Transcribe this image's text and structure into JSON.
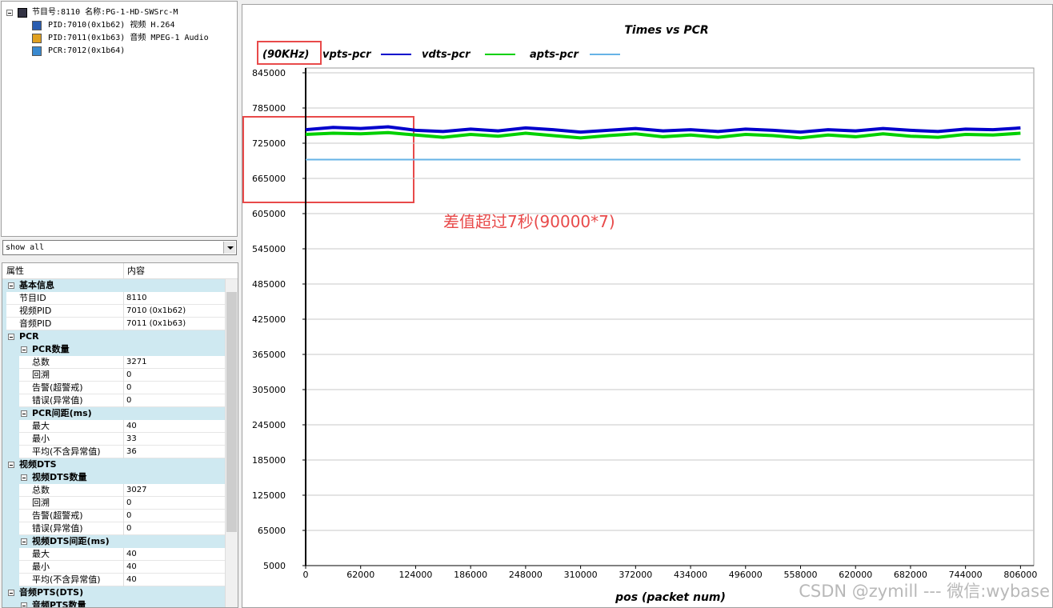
{
  "tree": {
    "root": "节目号:8110 名称:PG-1-HD-SWSrc-M",
    "children": [
      "PID:7010(0x1b62) 视频 H.264",
      "PID:7011(0x1b63) 音频 MPEG-1 Audio",
      "PCR:7012(0x1b64)"
    ]
  },
  "filter": "show all",
  "grid": {
    "headers": [
      "属性",
      "内容"
    ],
    "rows": [
      {
        "name": "基本信息",
        "children": [
          {
            "name": "节目ID",
            "value": "8110"
          },
          {
            "name": "视频PID",
            "value": "7010 (0x1b62)"
          },
          {
            "name": "音频PID",
            "value": "7011 (0x1b63)"
          }
        ]
      },
      {
        "name": "PCR",
        "children": [
          {
            "name": "PCR数量",
            "children": [
              {
                "name": "总数",
                "value": "3271"
              },
              {
                "name": "回溯",
                "value": "0"
              },
              {
                "name": "告警(超警戒)",
                "value": "0"
              },
              {
                "name": "错误(异常值)",
                "value": "0"
              }
            ]
          },
          {
            "name": "PCR间距(ms)",
            "children": [
              {
                "name": "最大",
                "value": "40"
              },
              {
                "name": "最小",
                "value": "33"
              },
              {
                "name": "平均(不含异常值)",
                "value": "36"
              }
            ]
          }
        ]
      },
      {
        "name": "视频DTS",
        "children": [
          {
            "name": "视频DTS数量",
            "children": [
              {
                "name": "总数",
                "value": "3027"
              },
              {
                "name": "回溯",
                "value": "0"
              },
              {
                "name": "告警(超警戒)",
                "value": "0"
              },
              {
                "name": "错误(异常值)",
                "value": "0"
              }
            ]
          },
          {
            "name": "视频DTS间距(ms)",
            "children": [
              {
                "name": "最大",
                "value": "40"
              },
              {
                "name": "最小",
                "value": "40"
              },
              {
                "name": "平均(不含异常值)",
                "value": "40"
              }
            ]
          }
        ]
      },
      {
        "name": "音频PTS(DTS)",
        "children": [
          {
            "name": "音频PTS数量",
            "children": []
          }
        ]
      }
    ]
  },
  "chart_data": {
    "type": "line",
    "title": "Times vs PCR",
    "unit_label": "(90KHz)",
    "xlabel": "pos (packet num)",
    "annotation": "差值超过7秒(90000*7)",
    "watermark": "CSDN @zymill --- 微信:wybase",
    "x": [
      0,
      31000,
      62000,
      93000,
      124000,
      155000,
      186000,
      217000,
      248000,
      279000,
      310000,
      341000,
      372000,
      403000,
      434000,
      465000,
      496000,
      527000,
      558000,
      589000,
      620000,
      651000,
      682000,
      713000,
      744000,
      775000,
      806000
    ],
    "series": [
      {
        "name": "vpts-pcr",
        "color": "#0000cc",
        "values": [
          748000,
          752000,
          750000,
          753000,
          747000,
          745000,
          749000,
          746000,
          751000,
          748000,
          744000,
          747000,
          750000,
          746000,
          748000,
          745000,
          749000,
          747000,
          744000,
          748000,
          746000,
          750000,
          747000,
          745000,
          749000,
          748000,
          751000
        ]
      },
      {
        "name": "vdts-pcr",
        "color": "#00d000",
        "values": [
          740000,
          742000,
          741000,
          743000,
          739000,
          735000,
          740000,
          737000,
          742000,
          738000,
          734000,
          738000,
          741000,
          736000,
          739000,
          735000,
          740000,
          738000,
          734000,
          739000,
          736000,
          741000,
          737000,
          735000,
          740000,
          739000,
          742000
        ]
      },
      {
        "name": "apts-pcr",
        "color": "#66b3e6",
        "values": [
          697000,
          697000,
          697000,
          697000,
          697000,
          697000,
          697000,
          697000,
          697000,
          697000,
          697000,
          697000,
          697000,
          697000,
          697000,
          697000,
          697000,
          697000,
          697000,
          697000,
          697000,
          697000,
          697000,
          697000,
          697000,
          697000,
          697000
        ]
      }
    ],
    "xlim": [
      0,
      821000
    ],
    "ylim": [
      5000,
      845000
    ],
    "xticks": [
      0,
      62000,
      124000,
      186000,
      248000,
      310000,
      372000,
      434000,
      496000,
      558000,
      620000,
      682000,
      744000,
      806000
    ],
    "yticks": [
      5000,
      65000,
      125000,
      185000,
      245000,
      305000,
      365000,
      425000,
      485000,
      545000,
      605000,
      665000,
      725000,
      785000,
      845000
    ],
    "grid": true
  }
}
